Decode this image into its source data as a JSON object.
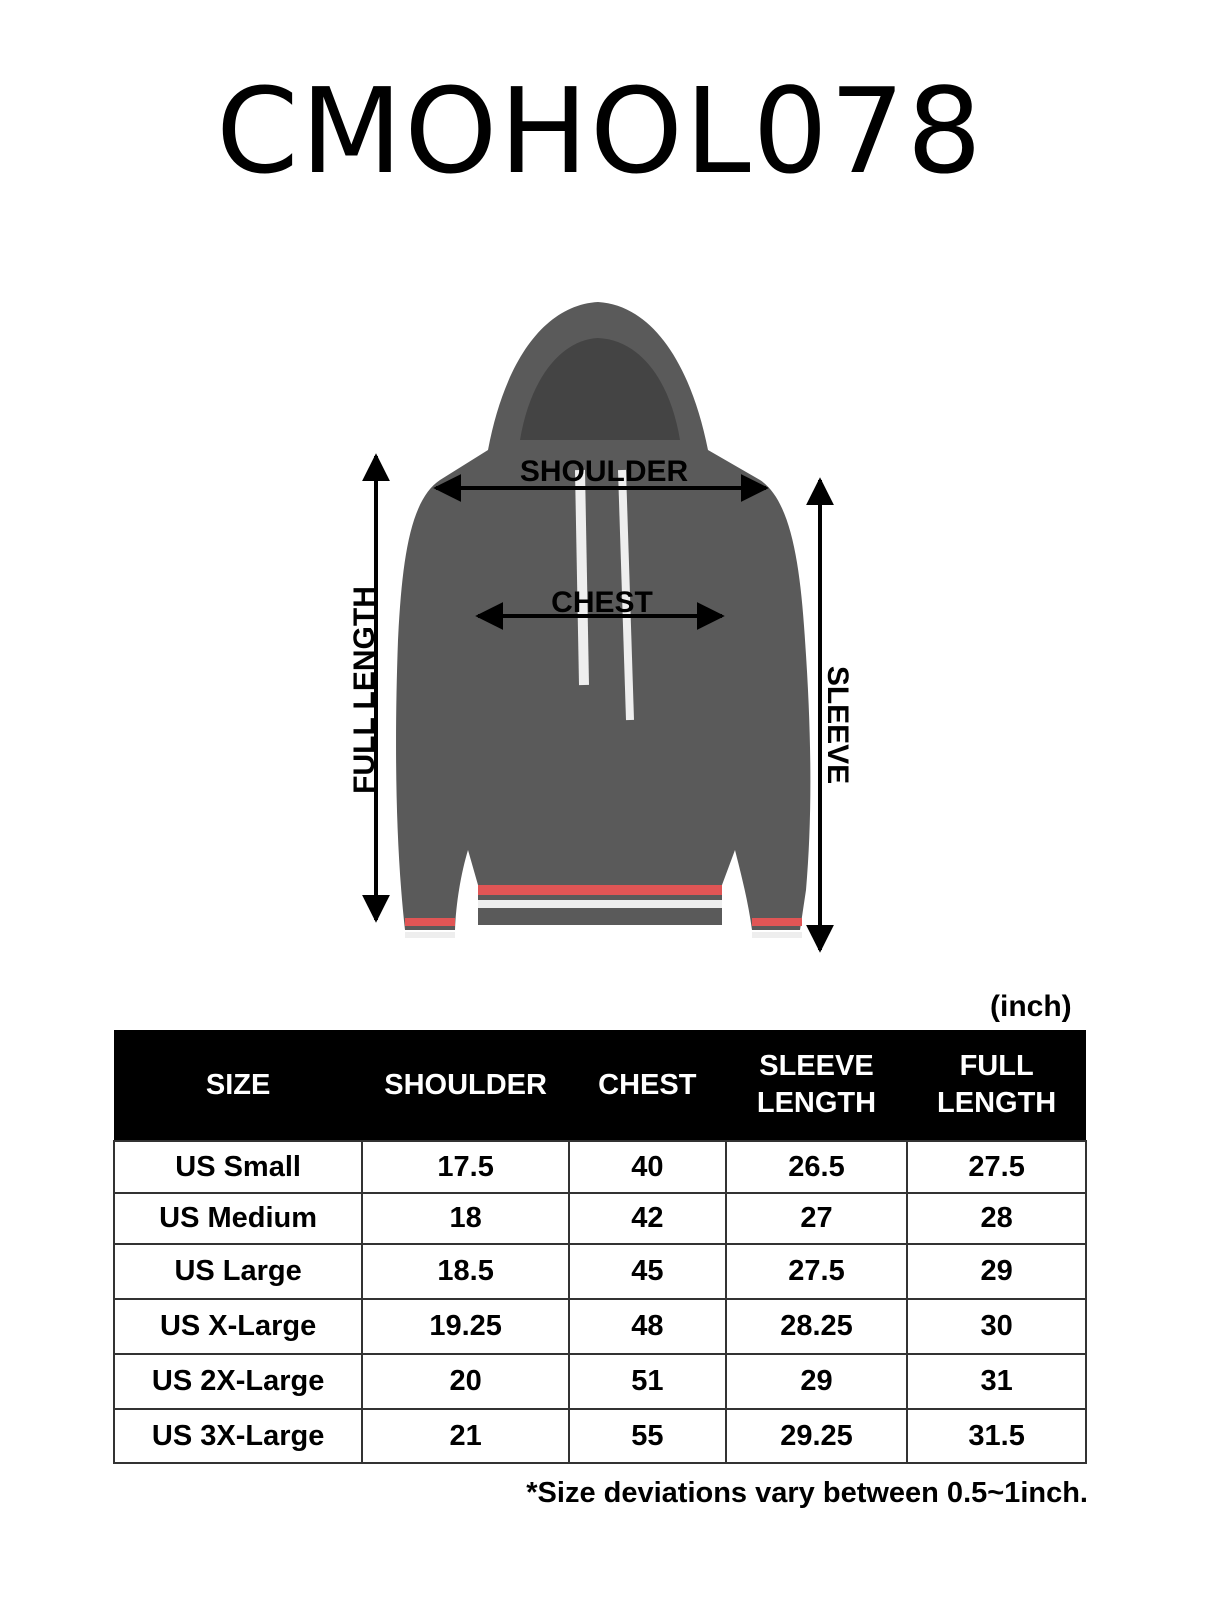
{
  "title": "CMOHOL078",
  "diagram": {
    "labels": {
      "shoulder": "SHOULDER",
      "chest": "CHEST",
      "full_length": "FULL LENGTH",
      "sleeve": "SLEEVE"
    },
    "garment_color": "#5a5a5a",
    "trim_color": "#e05555"
  },
  "unit": "(inch)",
  "table": {
    "headers": [
      [
        "SIZE"
      ],
      [
        "SHOULDER"
      ],
      [
        "CHEST"
      ],
      [
        "SLEEVE",
        "LENGTH"
      ],
      [
        "FULL",
        "LENGTH"
      ]
    ],
    "rows": [
      [
        "US Small",
        "17.5",
        "40",
        "26.5",
        "27.5"
      ],
      [
        "US Medium",
        "18",
        "42",
        "27",
        "28"
      ],
      [
        "US Large",
        "18.5",
        "45",
        "27.5",
        "29"
      ],
      [
        "US X-Large",
        "19.25",
        "48",
        "28.25",
        "30"
      ],
      [
        "US 2X-Large",
        "20",
        "51",
        "29",
        "31"
      ],
      [
        "US 3X-Large",
        "21",
        "55",
        "29.25",
        "31.5"
      ]
    ]
  },
  "note": "*Size deviations vary between 0.5~1inch."
}
